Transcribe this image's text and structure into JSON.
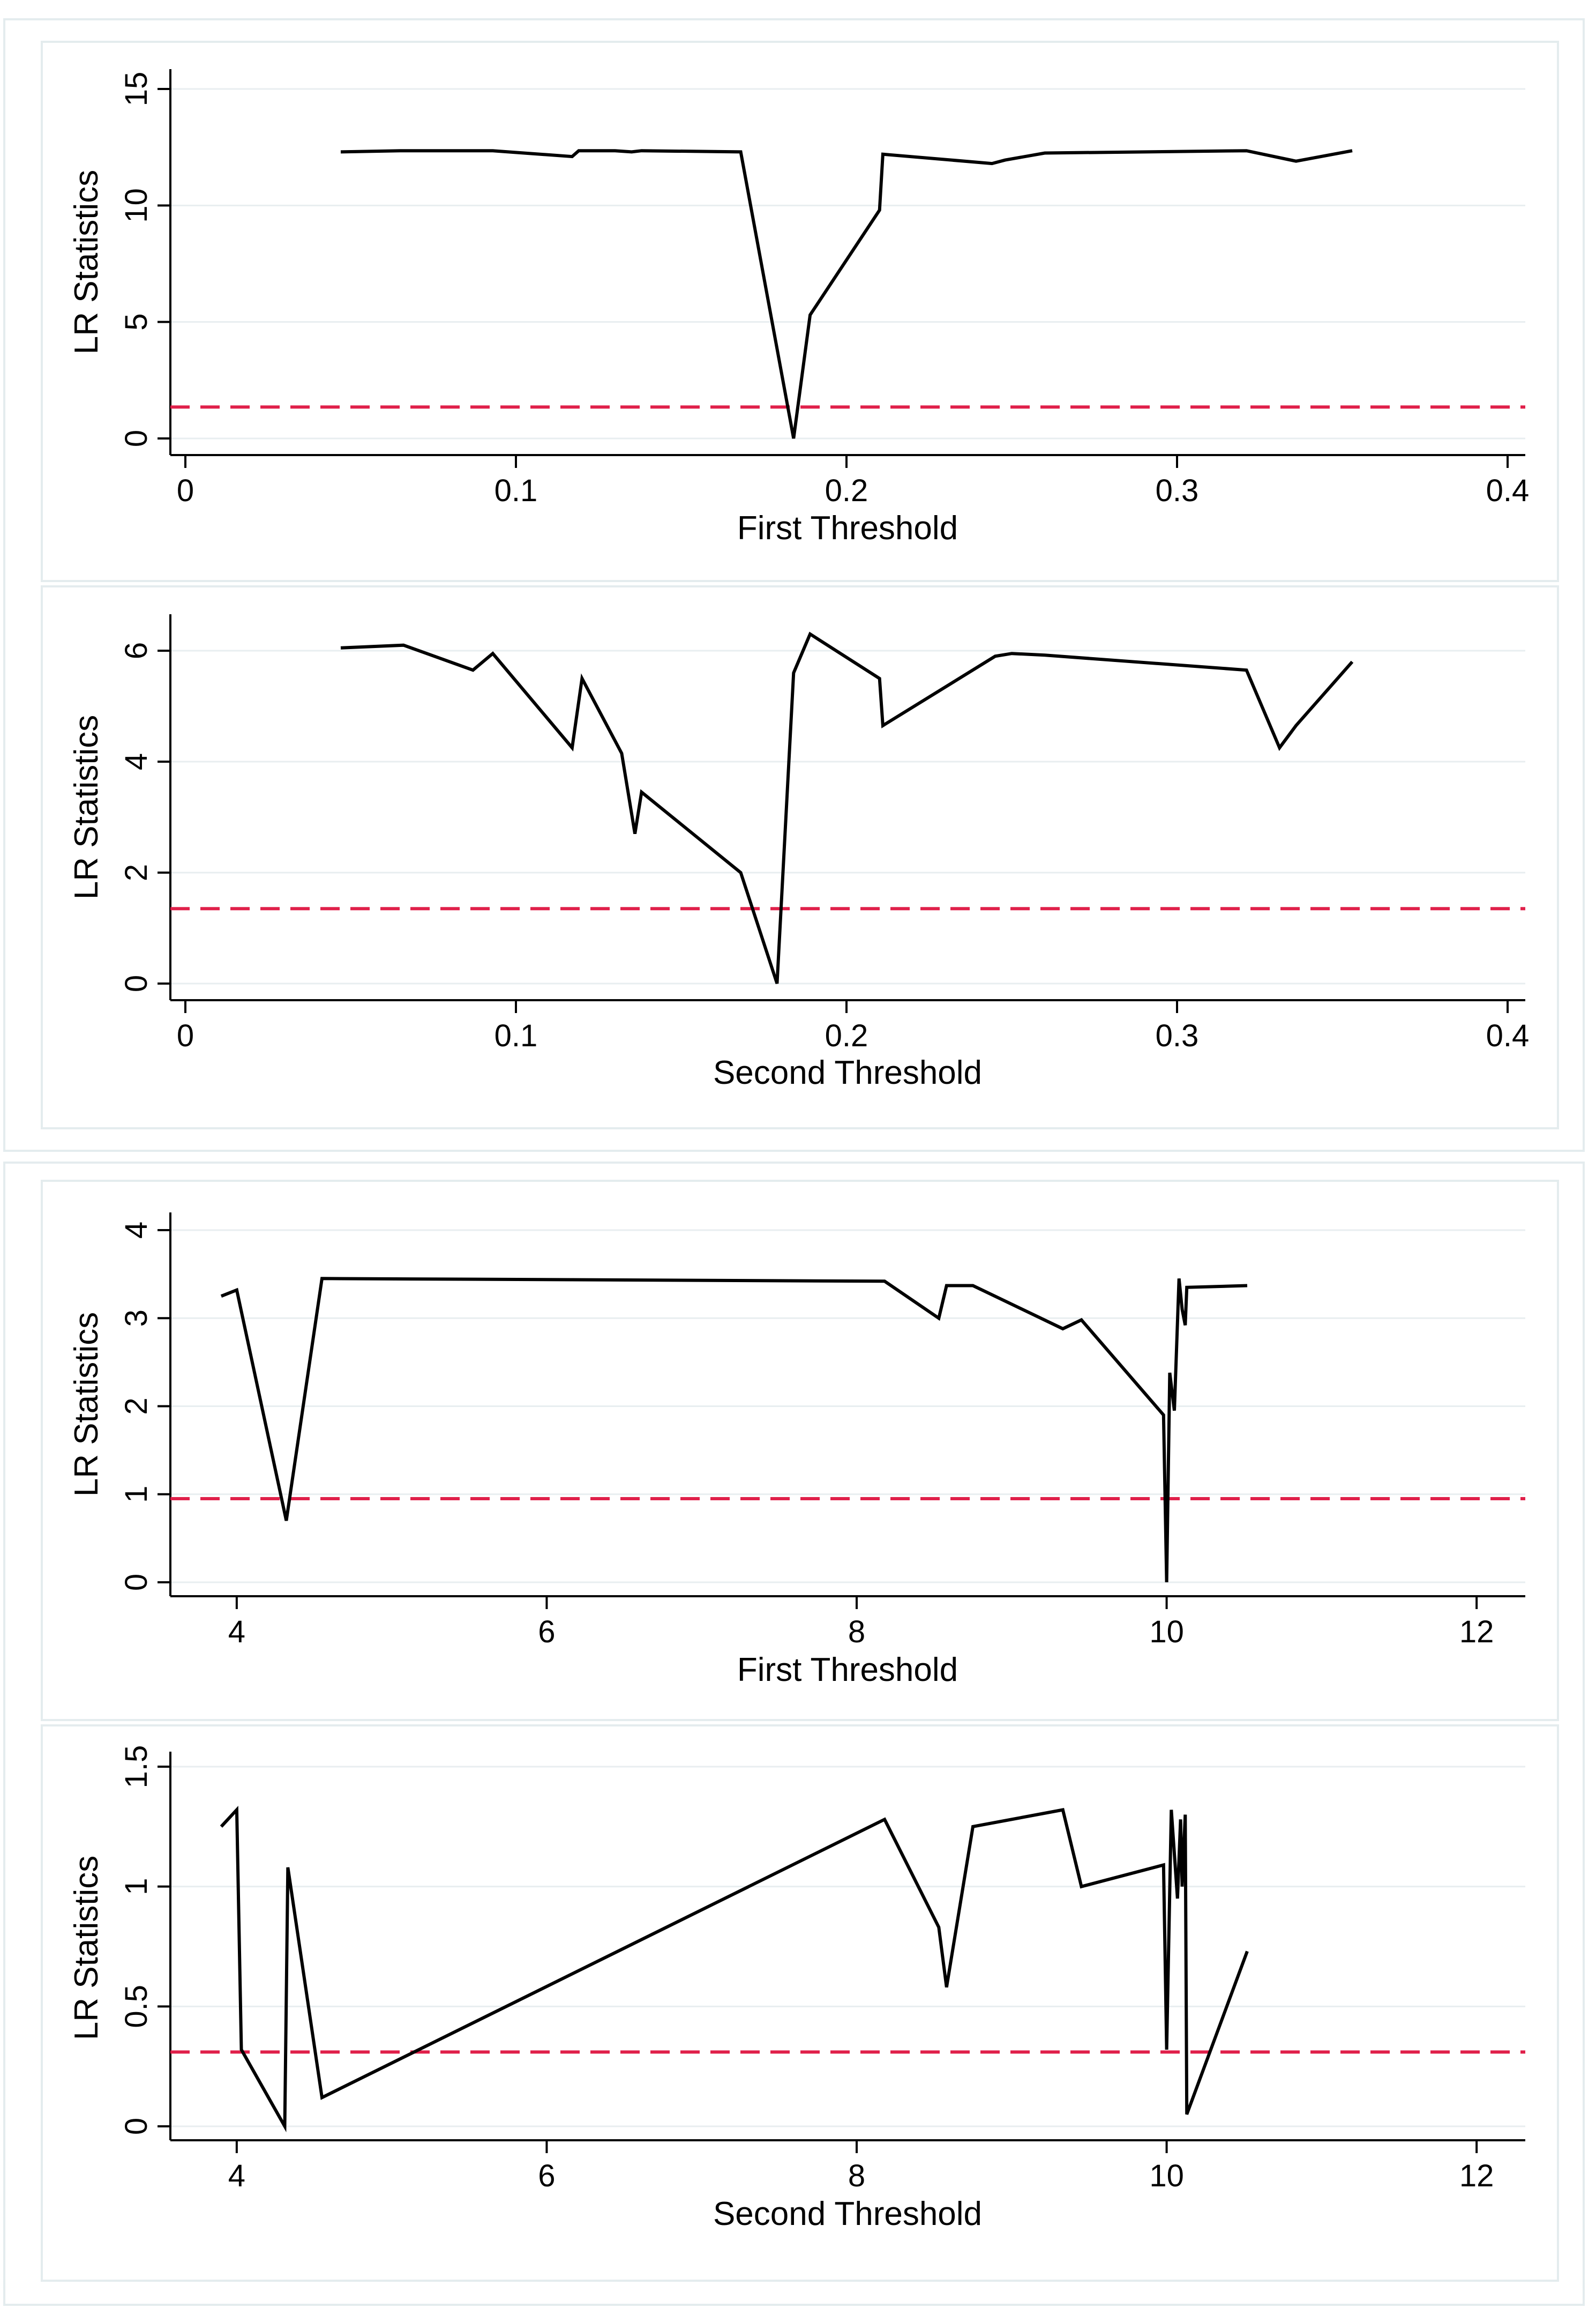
{
  "colors": {
    "line": "#000000",
    "threshold": "#e0204a",
    "grid": "#e8eef0",
    "frame": "#e4ecee",
    "background": "#ffffff"
  },
  "chart_data": [
    {
      "type": "line",
      "title": "",
      "xlabel": "First Threshold",
      "ylabel": "LR Statistics",
      "xlim": [
        0,
        0.4
      ],
      "ylim": [
        0,
        15
      ],
      "xticks": [
        0,
        0.1,
        0.2,
        0.3,
        0.4
      ],
      "xtick_labels": [
        "0",
        "0.1",
        "0.2",
        "0.3",
        "0.4"
      ],
      "yticks": [
        0,
        5,
        10,
        15
      ],
      "ytick_labels": [
        "0",
        "5",
        "10",
        "15"
      ],
      "grid": true,
      "reference_line": {
        "y": 1.35,
        "style": "dashed",
        "color": "#e0204a"
      },
      "series": [
        {
          "name": "LR",
          "x": [
            0.047,
            0.065,
            0.093,
            0.117,
            0.119,
            0.13,
            0.135,
            0.138,
            0.168,
            0.184,
            0.189,
            0.21,
            0.211,
            0.244,
            0.248,
            0.26,
            0.321,
            0.336,
            0.353
          ],
          "y": [
            12.3,
            12.35,
            12.35,
            12.1,
            12.35,
            12.35,
            12.3,
            12.35,
            12.3,
            0.0,
            5.3,
            9.8,
            12.2,
            11.8,
            11.95,
            12.25,
            12.35,
            11.9,
            12.35
          ]
        }
      ]
    },
    {
      "type": "line",
      "title": "",
      "xlabel": "Second Threshold",
      "ylabel": "LR Statistics",
      "xlim": [
        0,
        0.4
      ],
      "ylim": [
        0,
        6
      ],
      "xticks": [
        0,
        0.1,
        0.2,
        0.3,
        0.4
      ],
      "xtick_labels": [
        "0",
        "0.1",
        "0.2",
        "0.3",
        "0.4"
      ],
      "yticks": [
        0,
        2,
        4,
        6
      ],
      "ytick_labels": [
        "0",
        "2",
        "4",
        "6"
      ],
      "grid": true,
      "reference_line": {
        "y": 1.35,
        "style": "dashed",
        "color": "#e0204a"
      },
      "series": [
        {
          "name": "LR",
          "x": [
            0.047,
            0.066,
            0.087,
            0.093,
            0.117,
            0.12,
            0.132,
            0.136,
            0.138,
            0.168,
            0.179,
            0.184,
            0.189,
            0.21,
            0.211,
            0.245,
            0.25,
            0.26,
            0.321,
            0.331,
            0.336,
            0.353
          ],
          "y": [
            6.05,
            6.1,
            5.65,
            5.95,
            4.25,
            5.5,
            4.15,
            2.7,
            3.45,
            2.0,
            0.0,
            5.6,
            6.3,
            5.5,
            4.65,
            5.9,
            5.95,
            5.92,
            5.65,
            4.25,
            4.65,
            5.8
          ]
        }
      ]
    },
    {
      "type": "line",
      "title": "",
      "xlabel": "First Threshold",
      "ylabel": "LR Statistics",
      "xlim": [
        3.8,
        12.2
      ],
      "ylim": [
        0,
        4
      ],
      "xticks": [
        4,
        6,
        8,
        10,
        12
      ],
      "xtick_labels": [
        "4",
        "6",
        "8",
        "10",
        "12"
      ],
      "yticks": [
        0,
        1,
        2,
        3,
        4
      ],
      "ytick_labels": [
        "0",
        "1",
        "2",
        "3",
        "4"
      ],
      "grid": true,
      "reference_line": {
        "y": 0.95,
        "style": "dashed",
        "color": "#e0204a"
      },
      "series": [
        {
          "name": "LR",
          "x": [
            3.9,
            4.0,
            4.32,
            4.55,
            8.18,
            8.53,
            8.58,
            8.75,
            9.33,
            9.45,
            9.98,
            10.0,
            10.02,
            10.05,
            10.08,
            10.1,
            10.12,
            10.13,
            10.52
          ],
          "y": [
            3.25,
            3.32,
            0.7,
            3.45,
            3.42,
            3.0,
            3.37,
            3.37,
            2.88,
            2.98,
            1.9,
            0.0,
            2.38,
            1.95,
            3.45,
            3.1,
            2.92,
            3.35,
            3.37
          ]
        }
      ]
    },
    {
      "type": "line",
      "title": "",
      "xlabel": "Second Threshold",
      "ylabel": "LR Statistics",
      "xlim": [
        3.8,
        12.2
      ],
      "ylim": [
        0,
        1.5
      ],
      "xticks": [
        4,
        6,
        8,
        10,
        12
      ],
      "xtick_labels": [
        "4",
        "6",
        "8",
        "10",
        "12"
      ],
      "yticks": [
        0,
        0.5,
        1,
        1.5
      ],
      "ytick_labels": [
        "0",
        "0.5",
        "1",
        "1.5"
      ],
      "grid": true,
      "reference_line": {
        "y": 0.31,
        "style": "dashed",
        "color": "#e0204a"
      },
      "series": [
        {
          "name": "LR",
          "x": [
            3.9,
            4.0,
            4.03,
            4.31,
            4.33,
            4.55,
            8.18,
            8.53,
            8.58,
            8.75,
            9.33,
            9.45,
            9.98,
            10.0,
            10.03,
            10.07,
            10.09,
            10.1,
            10.12,
            10.13,
            10.52
          ],
          "y": [
            1.25,
            1.32,
            0.32,
            0.0,
            1.08,
            0.12,
            1.28,
            0.83,
            0.58,
            1.25,
            1.32,
            1.0,
            1.09,
            0.32,
            1.32,
            0.95,
            1.28,
            1.0,
            1.3,
            0.05,
            0.73
          ]
        }
      ]
    }
  ]
}
